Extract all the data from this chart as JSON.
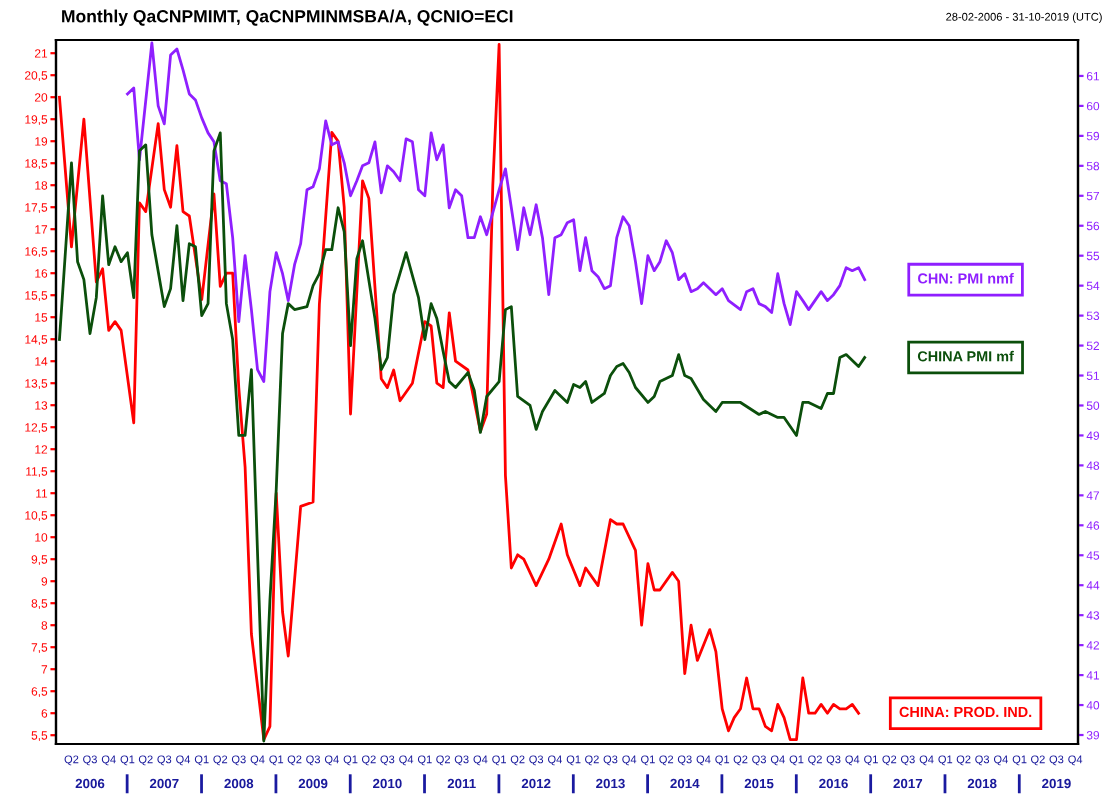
{
  "chart_data": {
    "type": "line",
    "title": "Monthly QaCNPMIMT, QaCNPMINMSBA/A, QCNIO=ECI",
    "annotations": [
      "28-02-2006 - 31-10-2019 (UTC)"
    ],
    "legend": "right",
    "xlim": [
      "2006-01-15",
      "2019-10-15"
    ],
    "xticks": [
      {
        "value": "2006-04",
        "label": "Q2"
      },
      {
        "value": "2006-07",
        "label": "Q3"
      },
      {
        "value": "2006-10",
        "label": "Q4"
      },
      {
        "value": "2007-01",
        "label": "Q1"
      },
      {
        "value": "2007-04",
        "label": "Q2"
      },
      {
        "value": "2007-07",
        "label": "Q3"
      },
      {
        "value": "2007-10",
        "label": "Q4"
      },
      {
        "value": "2008-01",
        "label": "Q1"
      },
      {
        "value": "2008-04",
        "label": "Q2"
      },
      {
        "value": "2008-07",
        "label": "Q3"
      },
      {
        "value": "2008-10",
        "label": "Q4"
      },
      {
        "value": "2009-01",
        "label": "Q1"
      },
      {
        "value": "2009-04",
        "label": "Q2"
      },
      {
        "value": "2009-07",
        "label": "Q3"
      },
      {
        "value": "2009-10",
        "label": "Q4"
      },
      {
        "value": "2010-01",
        "label": "Q1"
      },
      {
        "value": "2010-04",
        "label": "Q2"
      },
      {
        "value": "2010-07",
        "label": "Q3"
      },
      {
        "value": "2010-10",
        "label": "Q4"
      },
      {
        "value": "2011-01",
        "label": "Q1"
      },
      {
        "value": "2011-04",
        "label": "Q2"
      },
      {
        "value": "2011-07",
        "label": "Q3"
      },
      {
        "value": "2011-10",
        "label": "Q4"
      },
      {
        "value": "2012-01",
        "label": "Q1"
      },
      {
        "value": "2012-04",
        "label": "Q2"
      },
      {
        "value": "2012-07",
        "label": "Q3"
      },
      {
        "value": "2012-10",
        "label": "Q4"
      },
      {
        "value": "2013-01",
        "label": "Q1"
      },
      {
        "value": "2013-04",
        "label": "Q2"
      },
      {
        "value": "2013-07",
        "label": "Q3"
      },
      {
        "value": "2013-10",
        "label": "Q4"
      },
      {
        "value": "2014-01",
        "label": "Q1"
      },
      {
        "value": "2014-04",
        "label": "Q2"
      },
      {
        "value": "2014-07",
        "label": "Q3"
      },
      {
        "value": "2014-10",
        "label": "Q4"
      },
      {
        "value": "2015-01",
        "label": "Q1"
      },
      {
        "value": "2015-04",
        "label": "Q2"
      },
      {
        "value": "2015-07",
        "label": "Q3"
      },
      {
        "value": "2015-10",
        "label": "Q4"
      },
      {
        "value": "2016-01",
        "label": "Q1"
      },
      {
        "value": "2016-04",
        "label": "Q2"
      },
      {
        "value": "2016-07",
        "label": "Q3"
      },
      {
        "value": "2016-10",
        "label": "Q4"
      },
      {
        "value": "2017-01",
        "label": "Q1"
      },
      {
        "value": "2017-04",
        "label": "Q2"
      },
      {
        "value": "2017-07",
        "label": "Q3"
      },
      {
        "value": "2017-10",
        "label": "Q4"
      },
      {
        "value": "2018-01",
        "label": "Q1"
      },
      {
        "value": "2018-04",
        "label": "Q2"
      },
      {
        "value": "2018-07",
        "label": "Q3"
      },
      {
        "value": "2018-10",
        "label": "Q4"
      },
      {
        "value": "2019-01",
        "label": "Q1"
      },
      {
        "value": "2019-04",
        "label": "Q2"
      },
      {
        "value": "2019-07",
        "label": "Q3"
      },
      {
        "value": "2019-10",
        "label": "Q4"
      }
    ],
    "x2lim": [
      "2006-01-15",
      "2019-10-15"
    ],
    "x2ticks": [
      {
        "value": "2006-07",
        "label": "2006"
      },
      {
        "value": "2007-07",
        "label": "2007"
      },
      {
        "value": "2008-07",
        "label": "2008"
      },
      {
        "value": "2009-07",
        "label": "2009"
      },
      {
        "value": "2010-07",
        "label": "2010"
      },
      {
        "value": "2011-07",
        "label": "2011"
      },
      {
        "value": "2012-07",
        "label": "2012"
      },
      {
        "value": "2013-07",
        "label": "2013"
      },
      {
        "value": "2014-07",
        "label": "2014"
      },
      {
        "value": "2015-07",
        "label": "2015"
      },
      {
        "value": "2016-07",
        "label": "2016"
      },
      {
        "value": "2017-07",
        "label": "2017"
      },
      {
        "value": "2018-07",
        "label": "2018"
      },
      {
        "value": "2019-07",
        "label": "2019"
      }
    ],
    "ylim": [
      5.3,
      21.3
    ],
    "yticks": [
      {
        "value": 5.5,
        "label": "5,5"
      },
      6,
      {
        "value": 6.5,
        "label": "6,5"
      },
      7,
      {
        "value": 7.5,
        "label": "7,5"
      },
      8,
      {
        "value": 8.5,
        "label": "8,5"
      },
      9,
      {
        "value": 9.5,
        "label": "9,5"
      },
      10,
      {
        "value": 10.5,
        "label": "10,5"
      },
      11,
      {
        "value": 11.5,
        "label": "11,5"
      },
      12,
      {
        "value": 12.5,
        "label": "12,5"
      },
      13,
      {
        "value": 13.5,
        "label": "13,5"
      },
      14,
      {
        "value": 14.5,
        "label": "14,5"
      },
      15,
      {
        "value": 15.5,
        "label": "15,5"
      },
      16,
      {
        "value": 16.5,
        "label": "16,5"
      },
      17,
      {
        "value": 17.5,
        "label": "17,5"
      },
      18,
      {
        "value": 18.5,
        "label": "18,5"
      },
      19,
      {
        "value": 19.5,
        "label": "19,5"
      },
      20,
      {
        "value": 20.5,
        "label": "20,5"
      },
      21
    ],
    "y2lim": [
      38.7,
      62.2
    ],
    "y2ticks": [
      39,
      40,
      41,
      42,
      43,
      44,
      45,
      46,
      47,
      48,
      49,
      50,
      51,
      52,
      53,
      54,
      55,
      56,
      57,
      58,
      59,
      60,
      61
    ],
    "series": [
      {
        "name": "CHN: PMI nmf",
        "color": "#8f1fff",
        "axis": "y2",
        "x": [
          "2007-01",
          "2007-02",
          "2007-03",
          "2007-05",
          "2007-06",
          "2007-07",
          "2007-08",
          "2007-09",
          "2007-10",
          "2007-11",
          "2007-12",
          "2008-01",
          "2008-02",
          "2008-03",
          "2008-04",
          "2008-05",
          "2008-06",
          "2008-07",
          "2008-08",
          "2008-09",
          "2008-10",
          "2008-11",
          "2008-12",
          "2009-01",
          "2009-02",
          "2009-03",
          "2009-04",
          "2009-05",
          "2009-06",
          "2009-07",
          "2009-08",
          "2009-09",
          "2009-10",
          "2009-11",
          "2009-12",
          "2010-01",
          "2010-02",
          "2010-03",
          "2010-04",
          "2010-05",
          "2010-06",
          "2010-07",
          "2010-08",
          "2010-09",
          "2010-10",
          "2010-11",
          "2010-12",
          "2011-01",
          "2011-02",
          "2011-03",
          "2011-04",
          "2011-05",
          "2011-06",
          "2011-07",
          "2011-08",
          "2011-09",
          "2011-10",
          "2011-11",
          "2012-01",
          "2012-02",
          "2012-03",
          "2012-04",
          "2012-05",
          "2012-06",
          "2012-07",
          "2012-08",
          "2012-09",
          "2012-10",
          "2012-11",
          "2012-12",
          "2013-01",
          "2013-02",
          "2013-03",
          "2013-04",
          "2013-05",
          "2013-06",
          "2013-07",
          "2013-08",
          "2013-09",
          "2013-10",
          "2013-11",
          "2013-12",
          "2014-01",
          "2014-02",
          "2014-03",
          "2014-04",
          "2014-05",
          "2014-06",
          "2014-07",
          "2014-08",
          "2014-09",
          "2014-10",
          "2014-12",
          "2015-01",
          "2015-02",
          "2015-04",
          "2015-05",
          "2015-06",
          "2015-07",
          "2015-08",
          "2015-09",
          "2015-10",
          "2015-11",
          "2015-12",
          "2016-01",
          "2016-02",
          "2016-03",
          "2016-05",
          "2016-06",
          "2016-07",
          "2016-08",
          "2016-09",
          "2016-10",
          "2016-11",
          "2016-12"
        ],
        "values": [
          60.4,
          60.6,
          58.2,
          62.1,
          60.0,
          59.4,
          61.7,
          61.9,
          61.2,
          60.4,
          60.2,
          59.6,
          59.1,
          58.8,
          57.5,
          57.4,
          55.6,
          52.8,
          55.0,
          53.2,
          51.2,
          50.8,
          53.8,
          55.1,
          54.4,
          53.5,
          54.7,
          55.4,
          57.2,
          57.3,
          57.9,
          59.5,
          58.7,
          58.8,
          58.1,
          57.0,
          57.5,
          58.0,
          58.1,
          58.8,
          57.1,
          58.0,
          57.8,
          57.5,
          58.9,
          58.8,
          57.2,
          57.0,
          59.1,
          58.2,
          58.7,
          56.6,
          57.2,
          57.0,
          55.6,
          55.6,
          56.3,
          55.7,
          57.2,
          57.9,
          56.6,
          55.2,
          56.6,
          55.7,
          56.7,
          55.6,
          53.7,
          55.6,
          55.7,
          56.1,
          56.2,
          54.5,
          55.6,
          54.5,
          54.3,
          53.9,
          54.0,
          55.6,
          56.3,
          56.0,
          54.8,
          53.4,
          55.0,
          54.5,
          54.8,
          55.5,
          55.1,
          54.2,
          54.4,
          53.8,
          53.9,
          54.1,
          53.7,
          53.9,
          53.5,
          53.2,
          53.8,
          53.9,
          53.4,
          53.3,
          53.1,
          54.4,
          53.4,
          52.7,
          53.8,
          53.5,
          53.2,
          53.8,
          53.5,
          53.7,
          54.0,
          54.6,
          54.5,
          54.6,
          54.2
        ]
      },
      {
        "name": "CHINA PMI mf",
        "color": "#0b4f0b",
        "axis": "y2",
        "x": [
          "2006-02",
          "2006-04",
          "2006-05",
          "2006-06",
          "2006-07",
          "2006-08",
          "2006-09",
          "2006-10",
          "2006-11",
          "2006-12",
          "2007-01",
          "2007-02",
          "2007-03",
          "2007-04",
          "2007-05",
          "2007-07",
          "2007-08",
          "2007-09",
          "2007-10",
          "2007-11",
          "2007-12",
          "2008-01",
          "2008-02",
          "2008-03",
          "2008-04",
          "2008-05",
          "2008-06",
          "2008-07",
          "2008-08",
          "2008-09",
          "2008-11",
          "2008-12",
          "2009-01",
          "2009-02",
          "2009-03",
          "2009-04",
          "2009-06",
          "2009-07",
          "2009-08",
          "2009-09",
          "2009-10",
          "2009-11",
          "2009-12",
          "2010-01",
          "2010-02",
          "2010-03",
          "2010-05",
          "2010-06",
          "2010-07",
          "2010-08",
          "2010-10",
          "2010-12",
          "2011-01",
          "2011-02",
          "2011-03",
          "2011-04",
          "2011-05",
          "2011-06",
          "2011-08",
          "2011-09",
          "2011-10",
          "2011-11",
          "2012-01",
          "2012-02",
          "2012-03",
          "2012-04",
          "2012-06",
          "2012-07",
          "2012-08",
          "2012-10",
          "2012-12",
          "2013-01",
          "2013-02",
          "2013-03",
          "2013-04",
          "2013-06",
          "2013-07",
          "2013-08",
          "2013-09",
          "2013-10",
          "2013-11",
          "2014-01",
          "2014-02",
          "2014-03",
          "2014-05",
          "2014-06",
          "2014-07",
          "2014-08",
          "2014-10",
          "2014-12",
          "2015-01",
          "2015-04",
          "2015-07",
          "2015-08",
          "2015-10",
          "2015-11",
          "2016-01",
          "2016-02",
          "2016-03",
          "2016-05",
          "2016-06",
          "2016-07",
          "2016-08",
          "2016-09",
          "2016-11",
          "2016-12"
        ],
        "values": [
          52.2,
          58.1,
          54.8,
          54.2,
          52.4,
          53.6,
          57.0,
          54.7,
          55.3,
          54.8,
          55.1,
          53.6,
          58.5,
          58.7,
          55.7,
          53.3,
          53.9,
          56.0,
          53.5,
          55.4,
          55.3,
          53.0,
          53.4,
          58.5,
          59.1,
          53.4,
          52.2,
          49.0,
          49.0,
          51.2,
          38.8,
          43.5,
          47.2,
          52.4,
          53.4,
          53.2,
          53.3,
          54.0,
          54.4,
          55.2,
          55.2,
          56.6,
          55.8,
          52.0,
          54.9,
          55.5,
          52.9,
          51.2,
          51.6,
          53.7,
          55.1,
          53.6,
          52.2,
          53.4,
          52.9,
          51.8,
          50.8,
          50.6,
          51.1,
          50.5,
          49.1,
          50.3,
          50.8,
          53.2,
          53.3,
          50.3,
          50.0,
          49.2,
          49.8,
          50.5,
          50.1,
          50.7,
          50.6,
          50.8,
          50.1,
          50.4,
          51.0,
          51.3,
          51.4,
          51.1,
          50.6,
          50.1,
          50.3,
          50.8,
          51.0,
          51.7,
          51.0,
          50.9,
          50.2,
          49.8,
          50.1,
          50.1,
          49.7,
          49.8,
          49.6,
          49.6,
          49.0,
          50.1,
          50.1,
          49.9,
          50.4,
          50.4,
          51.6,
          51.7,
          51.3,
          51.6
        ]
      },
      {
        "name": "CHINA: PROD. IND.",
        "color": "#ff0000",
        "axis": "y",
        "x": [
          "2006-02",
          "2006-04",
          "2006-06",
          "2006-08",
          "2006-09",
          "2006-10",
          "2006-11",
          "2006-12",
          "2007-02",
          "2007-03",
          "2007-04",
          "2007-06",
          "2007-07",
          "2007-08",
          "2007-09",
          "2007-10",
          "2007-11",
          "2008-01",
          "2008-03",
          "2008-04",
          "2008-05",
          "2008-06",
          "2008-07",
          "2008-08",
          "2008-09",
          "2008-11",
          "2008-12",
          "2009-01",
          "2009-02",
          "2009-03",
          "2009-05",
          "2009-07",
          "2009-08",
          "2009-10",
          "2009-11",
          "2009-12",
          "2010-01",
          "2010-03",
          "2010-04",
          "2010-06",
          "2010-07",
          "2010-08",
          "2010-09",
          "2010-11",
          "2011-01",
          "2011-02",
          "2011-03",
          "2011-04",
          "2011-05",
          "2011-06",
          "2011-08",
          "2011-10",
          "2011-11",
          "2011-12",
          "2012-01",
          "2012-02",
          "2012-03",
          "2012-04",
          "2012-05",
          "2012-07",
          "2012-09",
          "2012-11",
          "2012-12",
          "2013-02",
          "2013-03",
          "2013-05",
          "2013-07",
          "2013-08",
          "2013-09",
          "2013-11",
          "2013-12",
          "2014-01",
          "2014-02",
          "2014-03",
          "2014-05",
          "2014-06",
          "2014-07",
          "2014-08",
          "2014-09",
          "2014-11",
          "2014-12",
          "2015-01",
          "2015-02",
          "2015-03",
          "2015-04",
          "2015-05",
          "2015-06",
          "2015-07",
          "2015-08",
          "2015-09",
          "2015-10",
          "2015-11",
          "2015-12",
          "2016-01",
          "2016-02",
          "2016-03",
          "2016-04",
          "2016-05",
          "2016-06",
          "2016-07",
          "2016-08",
          "2016-09",
          "2016-10",
          "2016-11"
        ],
        "values": [
          20.0,
          16.6,
          19.5,
          15.8,
          16.1,
          14.7,
          14.9,
          14.7,
          12.6,
          17.6,
          17.4,
          19.4,
          17.9,
          17.5,
          18.9,
          17.4,
          17.3,
          15.4,
          17.8,
          15.7,
          16.0,
          16.0,
          13.4,
          11.6,
          7.8,
          5.4,
          5.7,
          11.0,
          8.3,
          7.3,
          10.7,
          10.8,
          15.3,
          19.2,
          19.0,
          17.5,
          12.8,
          18.1,
          17.7,
          13.6,
          13.4,
          13.8,
          13.1,
          13.5,
          14.9,
          14.8,
          13.5,
          13.4,
          15.1,
          14.0,
          13.8,
          12.4,
          12.8,
          18.0,
          21.2,
          11.4,
          9.3,
          9.6,
          9.5,
          8.9,
          9.5,
          10.3,
          9.6,
          8.9,
          9.3,
          8.9,
          10.4,
          10.3,
          10.3,
          9.7,
          8.0,
          9.4,
          8.8,
          8.8,
          9.2,
          9.0,
          6.9,
          8.0,
          7.2,
          7.9,
          7.4,
          6.1,
          5.6,
          5.9,
          6.1,
          6.8,
          6.1,
          6.1,
          5.7,
          5.6,
          6.2,
          5.9,
          5.4,
          5.4,
          6.8,
          6.0,
          6.0,
          6.2,
          6.0,
          6.2,
          6.1,
          6.1,
          6.2,
          6.0
        ]
      }
    ]
  }
}
